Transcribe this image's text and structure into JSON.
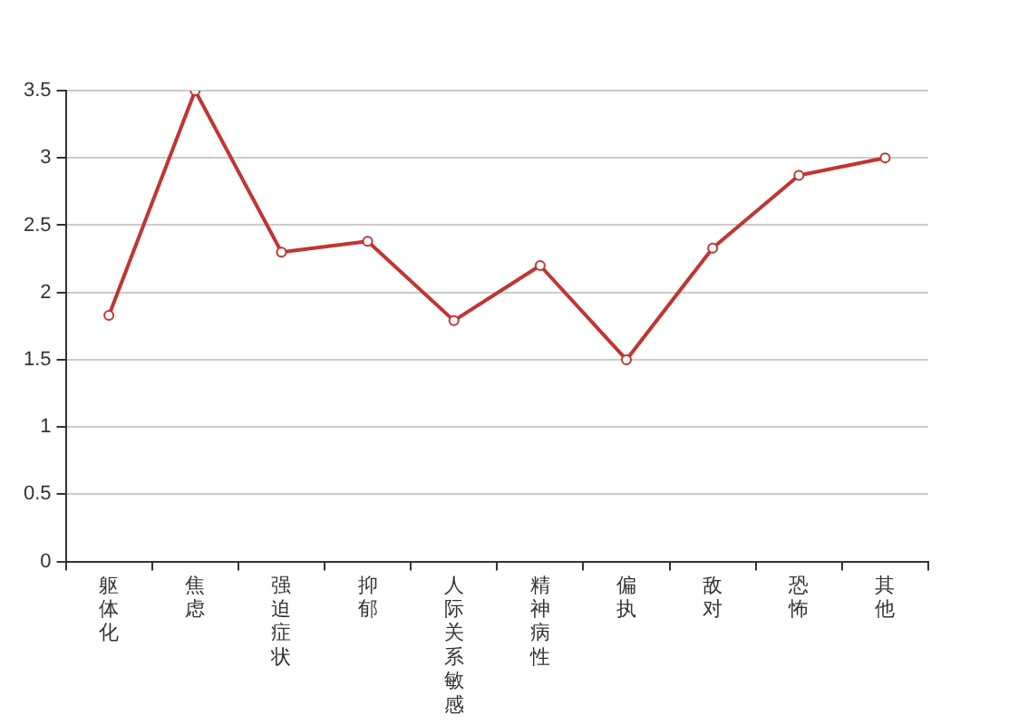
{
  "chart_data": {
    "type": "line",
    "categories": [
      "躯体化",
      "焦虑",
      "强迫症状",
      "抑郁",
      "人际关系敏感",
      "精神病性",
      "偏执",
      "敌对",
      "恐怖",
      "其他"
    ],
    "series": [
      {
        "color": "#c23531",
        "values": [
          1.83,
          3.5,
          2.3,
          2.38,
          1.79,
          2.2,
          1.5,
          2.33,
          2.87,
          3.0
        ]
      }
    ],
    "ylim": [
      0,
      3.5
    ],
    "yticks": [
      0,
      0.5,
      1,
      1.5,
      2,
      2.5,
      3,
      3.5
    ],
    "grid": "y",
    "legend": false,
    "marker": "circle",
    "line_style": "solid"
  }
}
